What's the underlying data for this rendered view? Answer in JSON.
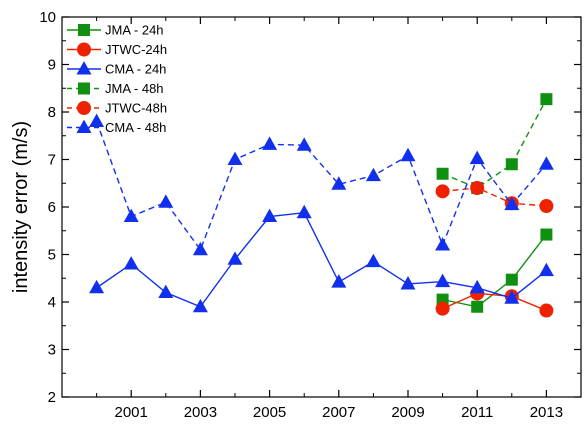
{
  "chart_data": {
    "type": "line",
    "title": "",
    "xlabel": "",
    "ylabel": "intensity error (m/s)",
    "xlim": [
      1999,
      2014
    ],
    "ylim": [
      2,
      10
    ],
    "x_ticks": [
      2001,
      2003,
      2005,
      2007,
      2009,
      2011,
      2013
    ],
    "y_ticks": [
      2,
      3,
      4,
      5,
      6,
      7,
      8,
      9,
      10
    ],
    "grid": false,
    "legend_position": "top-left",
    "series": [
      {
        "name": "JMA  - 24h",
        "color": "#109010",
        "marker": "square",
        "dash": "solid",
        "x": [
          2010,
          2011,
          2012,
          2013
        ],
        "y": [
          4.05,
          3.9,
          4.47,
          5.42
        ]
      },
      {
        "name": "JTWC-24h",
        "color": "#ee2200",
        "marker": "circle",
        "dash": "solid",
        "x": [
          2010,
          2011,
          2012,
          2013
        ],
        "y": [
          3.86,
          4.18,
          4.12,
          3.82
        ]
      },
      {
        "name": "CMA - 24h",
        "color": "#1030ee",
        "marker": "triangle",
        "dash": "solid",
        "x": [
          2000,
          2001,
          2002,
          2003,
          2004,
          2005,
          2006,
          2007,
          2008,
          2009,
          2010,
          2011,
          2012,
          2013
        ],
        "y": [
          4.3,
          4.8,
          4.2,
          3.9,
          4.9,
          5.8,
          5.88,
          4.42,
          4.85,
          4.38,
          4.43,
          4.3,
          4.08,
          4.66
        ]
      },
      {
        "name": "JMA  - 48h",
        "color": "#109010",
        "marker": "square",
        "dash": "dashed",
        "x": [
          2010,
          2011,
          2012,
          2013
        ],
        "y": [
          6.7,
          6.4,
          6.9,
          8.27
        ]
      },
      {
        "name": "JTWC-48h",
        "color": "#ee2200",
        "marker": "circle",
        "dash": "dashed",
        "x": [
          2010,
          2011,
          2012,
          2013
        ],
        "y": [
          6.33,
          6.4,
          6.08,
          6.02
        ]
      },
      {
        "name": "CMA - 48h",
        "color": "#1030ee",
        "marker": "triangle",
        "dash": "dashed",
        "x": [
          2000,
          2001,
          2002,
          2003,
          2004,
          2005,
          2006,
          2007,
          2008,
          2009,
          2010,
          2011,
          2012,
          2013
        ],
        "y": [
          7.8,
          5.8,
          6.1,
          5.1,
          7.0,
          7.32,
          7.3,
          6.48,
          6.66,
          7.08,
          5.2,
          7.02,
          6.05,
          6.9
        ]
      }
    ]
  }
}
